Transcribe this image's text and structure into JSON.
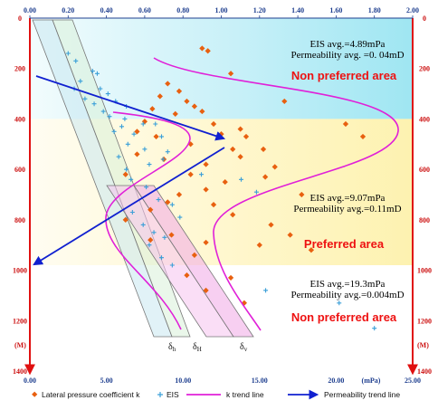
{
  "chart_data": {
    "type": "scatter",
    "y_axis": {
      "label": "(M)",
      "range": [
        0,
        1400
      ],
      "ticks": [
        0,
        200,
        400,
        600,
        800,
        1000,
        1200,
        1400
      ],
      "inverted": true
    },
    "x_axis_top": {
      "range": [
        0,
        2.0
      ],
      "ticks": [
        "0.00",
        "0.20",
        "0.40",
        "0.60",
        "0.80",
        "1.00",
        "1.20",
        "1.40",
        "1.60",
        "1.80",
        "2.00"
      ]
    },
    "x_axis_bottom": {
      "unit": "(mPa)",
      "range": [
        0,
        25
      ],
      "ticks": [
        "0.00",
        "5.00",
        "10.00",
        "15.00",
        "20.00",
        "25.00"
      ]
    },
    "zones": [
      {
        "name": "Non preferred area",
        "depth": [
          0,
          400
        ],
        "color": "#c7f0f8",
        "eis_note": "EIS avg.=4.89mPa",
        "perm_note": "Permeability  avg. =0. 04mD"
      },
      {
        "name": "Preferred area",
        "depth": [
          400,
          980
        ],
        "color": "#fdf2b0",
        "eis_note": "EIS avg.=9.07mPa",
        "perm_note": "Permeability  avg.=0.11mD"
      },
      {
        "name": "Non preferred area",
        "depth": [
          980,
          1400
        ],
        "color": "#ffffff",
        "eis_note": "EIS avg.=19.3mPa",
        "perm_note": "Permeability avg.=0.004mD"
      }
    ],
    "stress_labels": [
      "δh",
      "δH",
      "δv"
    ],
    "series": [
      {
        "name": "Lateral pressure coefficient k",
        "axis": "top",
        "color": "#e86010",
        "points": [
          [
            0.9,
            120
          ],
          [
            0.93,
            130
          ],
          [
            1.05,
            220
          ],
          [
            1.33,
            330
          ],
          [
            1.65,
            420
          ],
          [
            1.74,
            470
          ],
          [
            0.72,
            260
          ],
          [
            0.78,
            290
          ],
          [
            0.68,
            310
          ],
          [
            0.82,
            330
          ],
          [
            0.86,
            350
          ],
          [
            0.9,
            370
          ],
          [
            0.76,
            380
          ],
          [
            0.64,
            360
          ],
          [
            0.6,
            410
          ],
          [
            0.96,
            420
          ],
          [
            1.1,
            440
          ],
          [
            1.13,
            470
          ],
          [
            1.0,
            460
          ],
          [
            0.56,
            450
          ],
          [
            0.66,
            470
          ],
          [
            0.84,
            500
          ],
          [
            1.06,
            520
          ],
          [
            1.22,
            520
          ],
          [
            1.1,
            550
          ],
          [
            0.56,
            540
          ],
          [
            0.7,
            560
          ],
          [
            0.92,
            580
          ],
          [
            1.28,
            590
          ],
          [
            0.84,
            620
          ],
          [
            0.5,
            620
          ],
          [
            1.23,
            630
          ],
          [
            1.02,
            650
          ],
          [
            0.92,
            680
          ],
          [
            0.78,
            700
          ],
          [
            1.42,
            700
          ],
          [
            0.72,
            730
          ],
          [
            0.96,
            740
          ],
          [
            0.63,
            760
          ],
          [
            1.06,
            780
          ],
          [
            1.26,
            820
          ],
          [
            0.5,
            800
          ],
          [
            0.74,
            860
          ],
          [
            0.92,
            890
          ],
          [
            1.2,
            900
          ],
          [
            1.36,
            860
          ],
          [
            0.63,
            880
          ],
          [
            0.86,
            940
          ],
          [
            1.47,
            920
          ],
          [
            0.82,
            1020
          ],
          [
            1.05,
            1030
          ],
          [
            0.92,
            1080
          ],
          [
            1.12,
            1130
          ]
        ]
      },
      {
        "name": "EIS",
        "axis": "bottom",
        "color": "#3a9fd8",
        "points": [
          [
            2.5,
            140
          ],
          [
            3.0,
            170
          ],
          [
            4.1,
            210
          ],
          [
            4.4,
            220
          ],
          [
            3.3,
            250
          ],
          [
            2.9,
            280
          ],
          [
            4.6,
            280
          ],
          [
            5.1,
            300
          ],
          [
            3.6,
            320
          ],
          [
            4.2,
            340
          ],
          [
            5.6,
            330
          ],
          [
            6.3,
            350
          ],
          [
            4.8,
            370
          ],
          [
            5.2,
            390
          ],
          [
            6.2,
            400
          ],
          [
            6.0,
            430
          ],
          [
            7.4,
            420
          ],
          [
            8.2,
            420
          ],
          [
            5.5,
            450
          ],
          [
            6.8,
            460
          ],
          [
            8.6,
            470
          ],
          [
            6.4,
            500
          ],
          [
            7.5,
            520
          ],
          [
            9.0,
            530
          ],
          [
            5.8,
            550
          ],
          [
            7.8,
            580
          ],
          [
            8.7,
            560
          ],
          [
            6.3,
            600
          ],
          [
            11.2,
            620
          ],
          [
            13.8,
            640
          ],
          [
            6.6,
            640
          ],
          [
            7.6,
            670
          ],
          [
            14.8,
            690
          ],
          [
            8.4,
            720
          ],
          [
            9.3,
            740
          ],
          [
            6.7,
            770
          ],
          [
            9.8,
            790
          ],
          [
            7.4,
            820
          ],
          [
            8.1,
            850
          ],
          [
            8.8,
            870
          ],
          [
            7.8,
            900
          ],
          [
            8.6,
            950
          ],
          [
            9.3,
            980
          ],
          [
            15.4,
            1080
          ],
          [
            20.2,
            1130
          ],
          [
            22.5,
            1230
          ]
        ]
      }
    ],
    "k_trend_line": {
      "name": "k trend line",
      "color": "#e020d8"
    },
    "permeability_trend_line": {
      "name": "Permeability trend line",
      "color": "#1020d0"
    },
    "legend": [
      "Lateral pressure coefficient k",
      "EIS",
      "k trend line",
      "Permeability trend line"
    ]
  }
}
